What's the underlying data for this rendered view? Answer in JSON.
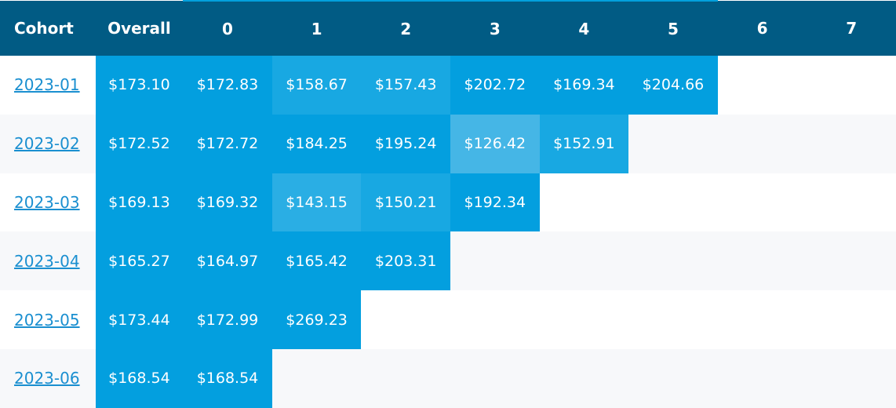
{
  "table": {
    "headers": [
      "Cohort",
      "Overall",
      "0",
      "1",
      "2",
      "3",
      "4",
      "5",
      "6",
      "7"
    ],
    "rows": [
      {
        "cohort": "2023-01",
        "cells": [
          "$173.10",
          "$172.83",
          "$158.67",
          "$157.43",
          "$202.72",
          "$169.34",
          "$204.66",
          "",
          ""
        ]
      },
      {
        "cohort": "2023-02",
        "cells": [
          "$172.52",
          "$172.72",
          "$184.25",
          "$195.24",
          "$126.42",
          "$152.91",
          "",
          "",
          ""
        ]
      },
      {
        "cohort": "2023-03",
        "cells": [
          "$169.13",
          "$169.32",
          "$143.15",
          "$150.21",
          "$192.34",
          "",
          "",
          "",
          ""
        ]
      },
      {
        "cohort": "2023-04",
        "cells": [
          "$165.27",
          "$164.97",
          "$165.42",
          "$203.31",
          "",
          "",
          "",
          "",
          ""
        ]
      },
      {
        "cohort": "2023-05",
        "cells": [
          "$173.44",
          "$172.99",
          "$269.23",
          "",
          "",
          "",
          "",
          "",
          ""
        ]
      },
      {
        "cohort": "2023-06",
        "cells": [
          "$168.54",
          "$168.54",
          "",
          "",
          "",
          "",
          "",
          "",
          ""
        ]
      }
    ]
  },
  "colors": {
    "header_bg": "#015b84",
    "header_accent": "#03a0dd",
    "cell_strong": "#039fdf",
    "cell_medium": "#18a8e2",
    "cell_light": "#2aaee4",
    "cell_lightest": "#45b6e6",
    "link": "#1a8fd0",
    "row_alt_bg": "#f7f8fa"
  }
}
